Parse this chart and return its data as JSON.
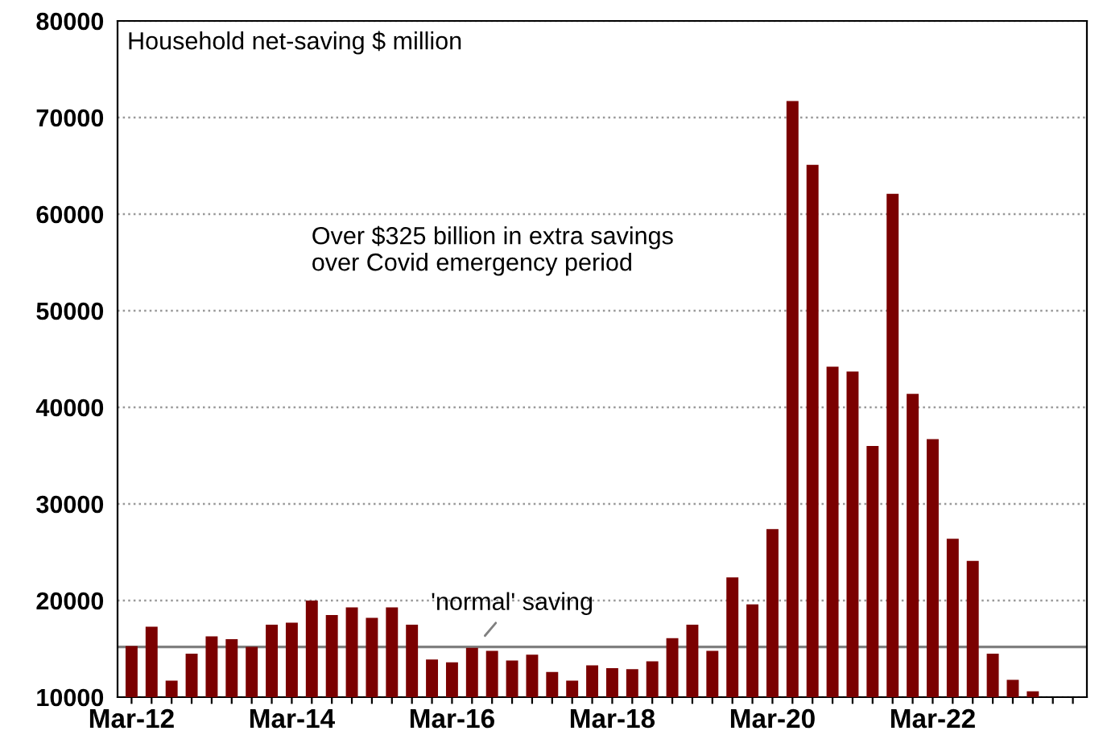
{
  "chart_data": {
    "type": "bar",
    "categories": [
      "Mar-12",
      null,
      null,
      null,
      null,
      null,
      null,
      null,
      "Mar-14",
      null,
      null,
      null,
      null,
      null,
      null,
      null,
      "Mar-16",
      null,
      null,
      null,
      null,
      null,
      null,
      null,
      "Mar-18",
      null,
      null,
      null,
      null,
      null,
      null,
      null,
      "Mar-20",
      null,
      null,
      null,
      null,
      null,
      null,
      null,
      "Mar-22",
      null,
      null,
      null,
      null,
      null,
      null,
      null
    ],
    "values": [
      15300,
      17300,
      11700,
      14500,
      16300,
      16000,
      15200,
      17500,
      17700,
      20000,
      18500,
      19300,
      18200,
      19300,
      17500,
      13900,
      13600,
      15100,
      14800,
      13800,
      14400,
      12600,
      11700,
      13300,
      13000,
      12900,
      13700,
      16100,
      17500,
      14800,
      22400,
      19600,
      27400,
      71700,
      65100,
      44200,
      43700,
      36000,
      62100,
      41400,
      36700,
      26400,
      24100,
      14500,
      11800,
      10600,
      null,
      null
    ],
    "color": "#7b0000",
    "ylim": [
      10000,
      80000
    ],
    "yticks": [
      10000,
      20000,
      30000,
      40000,
      50000,
      60000,
      70000,
      80000
    ],
    "grid": "y",
    "ref_lines": [
      {
        "axis": "y",
        "value": 15200,
        "label": "'normal' saving",
        "color": "#808080"
      }
    ],
    "annotations": [
      "Household net-saving $ million",
      "Over $325 billion in extra savings\nover Covid emergency period"
    ]
  }
}
